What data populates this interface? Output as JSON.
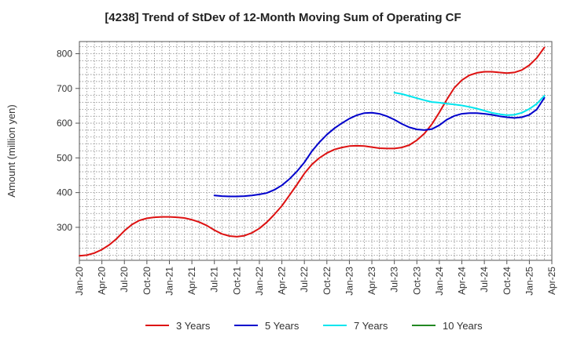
{
  "chart_data": {
    "type": "line",
    "title": "[4238]  Trend of StDev of 12-Month Moving Sum of Operating CF",
    "xlabel": "",
    "ylabel": "Amount (million yen)",
    "ylim": [
      205,
      835
    ],
    "yticks": [
      300,
      400,
      500,
      600,
      700,
      800
    ],
    "grid": true,
    "legend_placement": "bottom",
    "x_tick_labels": [
      "Jan-20",
      "Apr-20",
      "Jul-20",
      "Oct-20",
      "Jan-21",
      "Apr-21",
      "Jul-21",
      "Oct-21",
      "Jan-22",
      "Apr-22",
      "Jul-22",
      "Oct-22",
      "Jan-23",
      "Apr-23",
      "Jul-23",
      "Oct-23",
      "Jan-24",
      "Apr-24",
      "Jul-24",
      "Oct-24",
      "Jan-25",
      "Apr-25"
    ],
    "series": [
      {
        "name": "3 Years",
        "color": "#dd1111",
        "points": [
          [
            "2020-01",
            218
          ],
          [
            "2020-02",
            220
          ],
          [
            "2020-03",
            226
          ],
          [
            "2020-04",
            236
          ],
          [
            "2020-05",
            250
          ],
          [
            "2020-06",
            268
          ],
          [
            "2020-07",
            290
          ],
          [
            "2020-08",
            308
          ],
          [
            "2020-09",
            320
          ],
          [
            "2020-10",
            326
          ],
          [
            "2020-11",
            329
          ],
          [
            "2020-12",
            330
          ],
          [
            "2021-01",
            330
          ],
          [
            "2021-02",
            329
          ],
          [
            "2021-03",
            327
          ],
          [
            "2021-04",
            322
          ],
          [
            "2021-05",
            315
          ],
          [
            "2021-06",
            305
          ],
          [
            "2021-07",
            292
          ],
          [
            "2021-08",
            281
          ],
          [
            "2021-09",
            275
          ],
          [
            "2021-10",
            273
          ],
          [
            "2021-11",
            276
          ],
          [
            "2021-12",
            284
          ],
          [
            "2022-01",
            297
          ],
          [
            "2022-02",
            315
          ],
          [
            "2022-03",
            337
          ],
          [
            "2022-04",
            362
          ],
          [
            "2022-05",
            392
          ],
          [
            "2022-06",
            423
          ],
          [
            "2022-07",
            455
          ],
          [
            "2022-08",
            481
          ],
          [
            "2022-09",
            500
          ],
          [
            "2022-10",
            514
          ],
          [
            "2022-11",
            524
          ],
          [
            "2022-12",
            530
          ],
          [
            "2023-01",
            534
          ],
          [
            "2023-02",
            535
          ],
          [
            "2023-03",
            534
          ],
          [
            "2023-04",
            531
          ],
          [
            "2023-05",
            528
          ],
          [
            "2023-06",
            527
          ],
          [
            "2023-07",
            527
          ],
          [
            "2023-08",
            530
          ],
          [
            "2023-09",
            537
          ],
          [
            "2023-10",
            551
          ],
          [
            "2023-11",
            570
          ],
          [
            "2023-12",
            597
          ],
          [
            "2024-01",
            631
          ],
          [
            "2024-02",
            668
          ],
          [
            "2024-03",
            702
          ],
          [
            "2024-04",
            724
          ],
          [
            "2024-05",
            738
          ],
          [
            "2024-06",
            745
          ],
          [
            "2024-07",
            748
          ],
          [
            "2024-08",
            748
          ],
          [
            "2024-09",
            746
          ],
          [
            "2024-10",
            744
          ],
          [
            "2024-11",
            746
          ],
          [
            "2024-12",
            753
          ],
          [
            "2025-01",
            767
          ],
          [
            "2025-02",
            788
          ],
          [
            "2025-03",
            818
          ]
        ]
      },
      {
        "name": "5 Years",
        "color": "#0000cc",
        "points": [
          [
            "2021-07",
            392
          ],
          [
            "2021-08",
            390
          ],
          [
            "2021-09",
            389
          ],
          [
            "2021-10",
            389
          ],
          [
            "2021-11",
            390
          ],
          [
            "2021-12",
            392
          ],
          [
            "2022-01",
            395
          ],
          [
            "2022-02",
            399
          ],
          [
            "2022-03",
            408
          ],
          [
            "2022-04",
            421
          ],
          [
            "2022-05",
            439
          ],
          [
            "2022-06",
            461
          ],
          [
            "2022-07",
            487
          ],
          [
            "2022-08",
            519
          ],
          [
            "2022-09",
            545
          ],
          [
            "2022-10",
            567
          ],
          [
            "2022-11",
            585
          ],
          [
            "2022-12",
            600
          ],
          [
            "2023-01",
            613
          ],
          [
            "2023-02",
            623
          ],
          [
            "2023-03",
            629
          ],
          [
            "2023-04",
            630
          ],
          [
            "2023-05",
            627
          ],
          [
            "2023-06",
            620
          ],
          [
            "2023-07",
            610
          ],
          [
            "2023-08",
            598
          ],
          [
            "2023-09",
            588
          ],
          [
            "2023-10",
            582
          ],
          [
            "2023-11",
            580
          ],
          [
            "2023-12",
            583
          ],
          [
            "2024-01",
            594
          ],
          [
            "2024-02",
            610
          ],
          [
            "2024-03",
            621
          ],
          [
            "2024-04",
            627
          ],
          [
            "2024-05",
            629
          ],
          [
            "2024-06",
            629
          ],
          [
            "2024-07",
            627
          ],
          [
            "2024-08",
            624
          ],
          [
            "2024-09",
            620
          ],
          [
            "2024-10",
            617
          ],
          [
            "2024-11",
            615
          ],
          [
            "2024-12",
            617
          ],
          [
            "2025-01",
            624
          ],
          [
            "2025-02",
            640
          ],
          [
            "2025-03",
            673
          ]
        ]
      },
      {
        "name": "7 Years",
        "color": "#00e5ee",
        "points": [
          [
            "2023-07",
            688
          ],
          [
            "2023-08",
            684
          ],
          [
            "2023-09",
            678
          ],
          [
            "2023-10",
            672
          ],
          [
            "2023-11",
            666
          ],
          [
            "2023-12",
            661
          ],
          [
            "2024-01",
            659
          ],
          [
            "2024-02",
            656
          ],
          [
            "2024-03",
            654
          ],
          [
            "2024-04",
            651
          ],
          [
            "2024-05",
            647
          ],
          [
            "2024-06",
            642
          ],
          [
            "2024-07",
            636
          ],
          [
            "2024-08",
            630
          ],
          [
            "2024-09",
            626
          ],
          [
            "2024-10",
            623
          ],
          [
            "2024-11",
            624
          ],
          [
            "2024-12",
            630
          ],
          [
            "2025-01",
            641
          ],
          [
            "2025-02",
            656
          ],
          [
            "2025-03",
            679
          ]
        ]
      },
      {
        "name": "10 Years",
        "color": "#228822",
        "points": []
      }
    ]
  }
}
